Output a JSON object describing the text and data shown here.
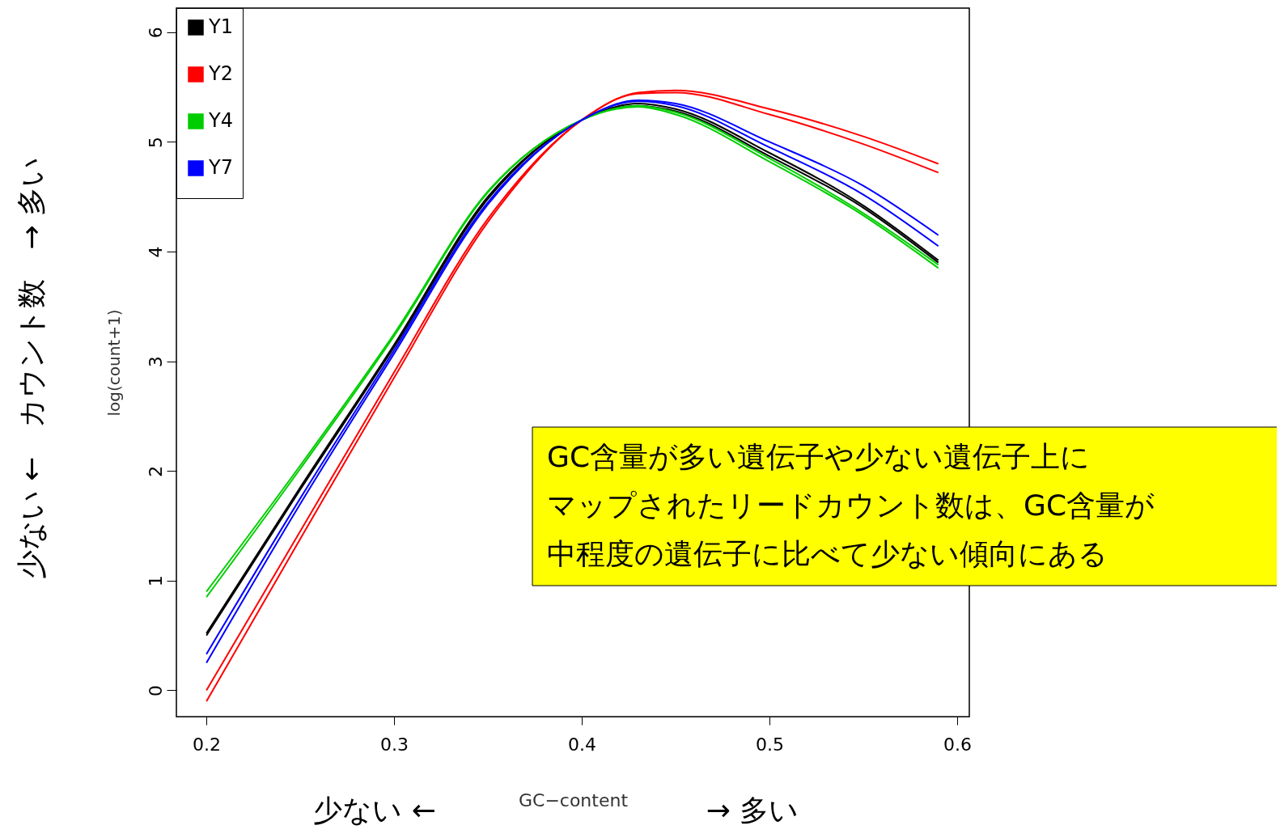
{
  "chart_data": {
    "type": "line",
    "xlabel": "GC−content",
    "ylabel": "log(count+1)",
    "x": [
      0.2,
      0.25,
      0.3,
      0.35,
      0.4,
      0.43,
      0.45,
      0.5,
      0.55,
      0.59
    ],
    "xlim": [
      0.184,
      0.6065
    ],
    "xticks": [
      0.2,
      0.3,
      0.4,
      0.5,
      0.6
    ],
    "ylim": [
      -0.24,
      6.22
    ],
    "yticks": [
      0,
      1,
      2,
      3,
      4,
      5,
      6
    ],
    "series": [
      {
        "name": "Y1",
        "color": "#000000",
        "values": [
          0.52,
          1.85,
          3.15,
          4.5,
          5.2,
          5.35,
          5.3,
          4.9,
          4.42,
          3.92
        ]
      },
      {
        "color": "#000000",
        "values": [
          0.5,
          1.83,
          3.13,
          4.48,
          5.2,
          5.33,
          5.28,
          4.87,
          4.4,
          3.9
        ]
      },
      {
        "name": "Y2",
        "color": "#ff0000",
        "values": [
          0.0,
          1.45,
          2.9,
          4.3,
          5.2,
          5.45,
          5.47,
          5.3,
          5.05,
          4.8
        ]
      },
      {
        "color": "#ff0000",
        "values": [
          -0.1,
          1.38,
          2.85,
          4.27,
          5.2,
          5.44,
          5.45,
          5.25,
          4.98,
          4.72
        ]
      },
      {
        "name": "Y4",
        "color": "#00cd00",
        "values": [
          0.9,
          2.05,
          3.25,
          4.55,
          5.2,
          5.33,
          5.27,
          4.85,
          4.35,
          3.88
        ]
      },
      {
        "color": "#00cd00",
        "values": [
          0.85,
          2.02,
          3.23,
          4.54,
          5.2,
          5.32,
          5.25,
          4.82,
          4.33,
          3.85
        ]
      },
      {
        "name": "Y7",
        "color": "#0000ff",
        "values": [
          0.33,
          1.75,
          3.1,
          4.45,
          5.2,
          5.38,
          5.35,
          5.0,
          4.6,
          4.15
        ]
      },
      {
        "color": "#0000ff",
        "values": [
          0.25,
          1.7,
          3.07,
          4.43,
          5.2,
          5.37,
          5.33,
          4.95,
          4.52,
          4.05
        ]
      }
    ],
    "legend": "top left",
    "grid": false,
    "marker": "none",
    "line_style": "solid",
    "annotations": [
      "GC含量が多い遺伝子や少ない遺伝子上に",
      "マップされたリードカウント数は、GC含量が",
      "中程度の遺伝子に比べて少ない傾向にある",
      "少ない ←　カウント数　→ 多い",
      "少ない ←",
      "→ 多い"
    ]
  }
}
